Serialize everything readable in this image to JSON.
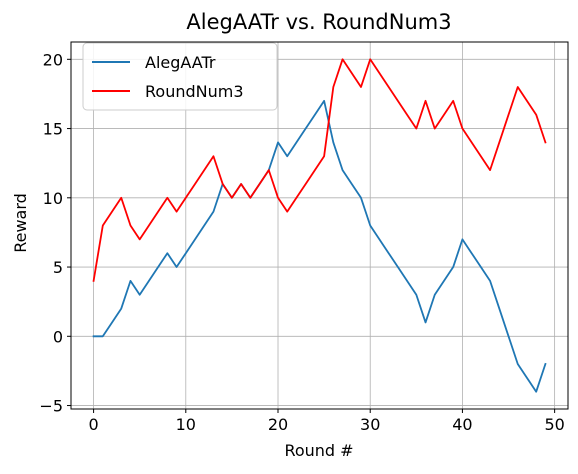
{
  "chart_data": {
    "type": "line",
    "title": "AlegAATr vs. RoundNum3",
    "xlabel": "Round #",
    "ylabel": "Reward",
    "xlim": [
      -2.45,
      51.45
    ],
    "ylim": [
      -5.25,
      21.25
    ],
    "xticks": [
      0,
      10,
      20,
      30,
      40,
      50
    ],
    "yticks": [
      -5,
      0,
      5,
      10,
      15,
      20
    ],
    "xtick_labels": [
      "0",
      "10",
      "20",
      "30",
      "40",
      "50"
    ],
    "ytick_labels": [
      "−5",
      "0",
      "5",
      "10",
      "15",
      "20"
    ],
    "grid": true,
    "legend_position": "upper-left",
    "series": [
      {
        "name": "AlegAATr",
        "color": "#1f77b4",
        "x": [
          0,
          1,
          2,
          3,
          4,
          5,
          6,
          7,
          8,
          9,
          10,
          11,
          12,
          13,
          14,
          15,
          16,
          17,
          18,
          19,
          20,
          21,
          22,
          23,
          24,
          25,
          26,
          27,
          28,
          29,
          30,
          31,
          32,
          33,
          34,
          35,
          36,
          37,
          38,
          39,
          40,
          41,
          42,
          43,
          44,
          45,
          46,
          47,
          48,
          49
        ],
        "y": [
          0,
          0,
          1,
          2,
          4,
          3,
          4,
          5,
          6,
          5,
          6,
          7,
          8,
          9,
          11,
          10,
          11,
          10,
          11,
          12,
          14,
          13,
          14,
          15,
          16,
          17,
          14,
          12,
          11,
          10,
          8,
          7,
          6,
          5,
          4,
          3,
          1,
          3,
          4,
          5,
          7,
          6,
          5,
          4,
          2,
          0,
          -2,
          -3,
          -4,
          -2
        ]
      },
      {
        "name": "RoundNum3",
        "color": "#ff0000",
        "x": [
          0,
          1,
          2,
          3,
          4,
          5,
          6,
          7,
          8,
          9,
          10,
          11,
          12,
          13,
          14,
          15,
          16,
          17,
          18,
          19,
          20,
          21,
          22,
          23,
          24,
          25,
          26,
          27,
          28,
          29,
          30,
          31,
          32,
          33,
          34,
          35,
          36,
          37,
          38,
          39,
          40,
          41,
          42,
          43,
          44,
          45,
          46,
          47,
          48,
          49
        ],
        "y": [
          4,
          8,
          9,
          10,
          8,
          7,
          8,
          9,
          10,
          9,
          10,
          11,
          12,
          13,
          11,
          10,
          11,
          10,
          11,
          12,
          10,
          9,
          10,
          11,
          12,
          13,
          18,
          20,
          19,
          18,
          20,
          19,
          18,
          17,
          16,
          15,
          17,
          15,
          16,
          17,
          15,
          14,
          13,
          12,
          14,
          16,
          18,
          17,
          16,
          14
        ]
      }
    ]
  }
}
